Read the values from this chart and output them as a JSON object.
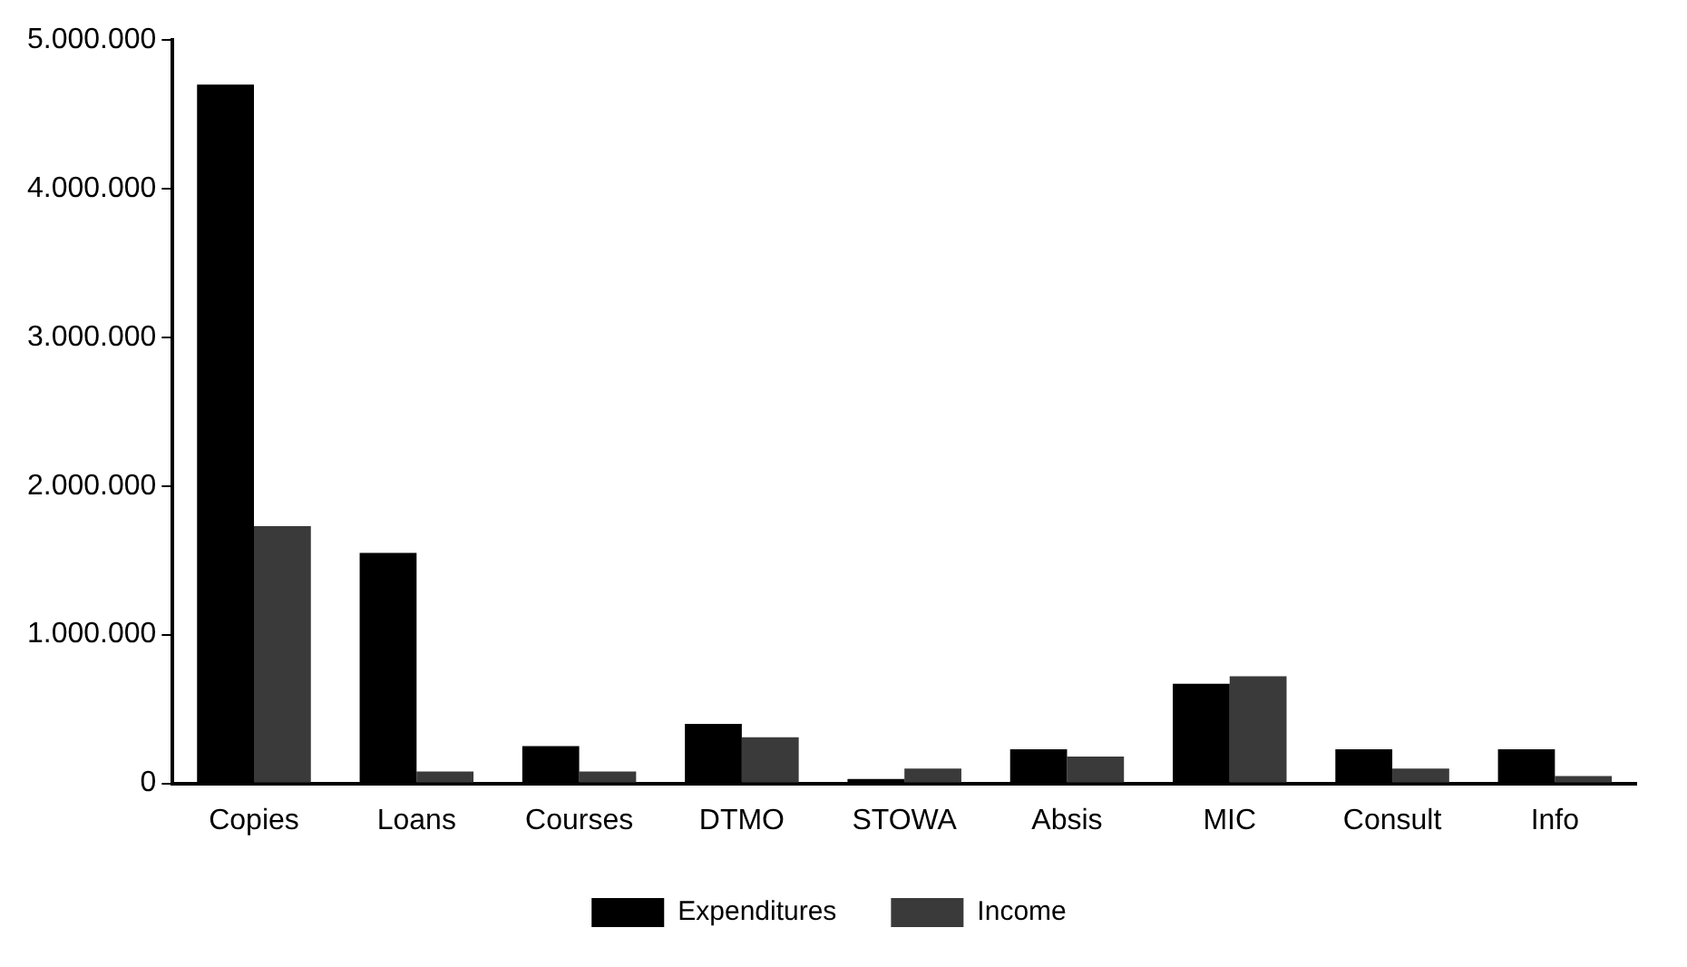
{
  "chart_data": {
    "type": "bar",
    "categories": [
      "Copies",
      "Loans",
      "Courses",
      "DTMO",
      "STOWA",
      "Absis",
      "MIC",
      "Consult",
      "Info"
    ],
    "series": [
      {
        "name": "Expenditures",
        "color": "#000000",
        "values": [
          4700000,
          1550000,
          250000,
          400000,
          30000,
          230000,
          670000,
          230000,
          230000
        ]
      },
      {
        "name": "Income",
        "color": "#3a3a3a",
        "values": [
          1730000,
          80000,
          80000,
          310000,
          100000,
          180000,
          720000,
          100000,
          50000
        ]
      }
    ],
    "ylim": [
      0,
      5000000
    ],
    "yticks": [
      {
        "value": 0,
        "label": "0"
      },
      {
        "value": 1000000,
        "label": "1.000.000"
      },
      {
        "value": 2000000,
        "label": "2.000.000"
      },
      {
        "value": 3000000,
        "label": "3.000.000"
      },
      {
        "value": 4000000,
        "label": "4.000.000"
      },
      {
        "value": 5000000,
        "label": "5.000.000"
      }
    ],
    "grid": false,
    "legend": "bottom"
  }
}
